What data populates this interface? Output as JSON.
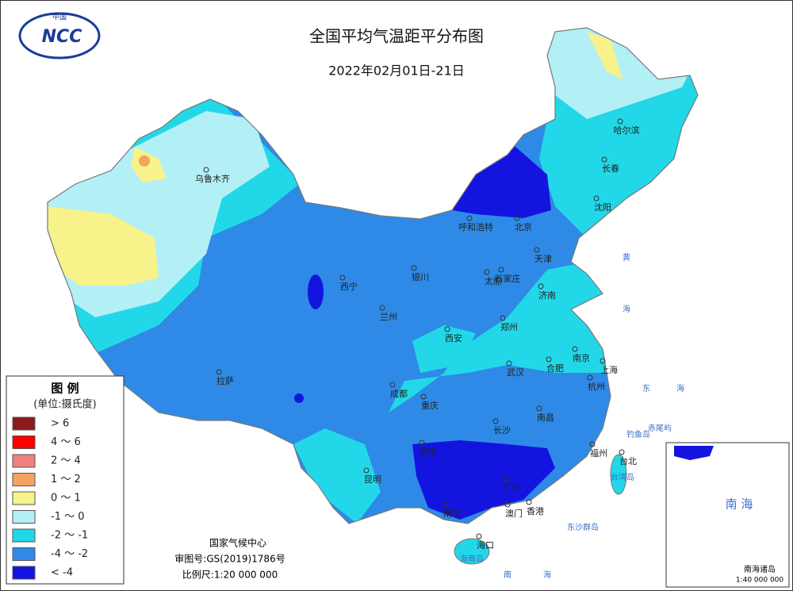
{
  "header": {
    "logo_top": "中国",
    "logo": "NCC",
    "title": "全国平均气温距平分布图",
    "date": "2022年02月01日-21日"
  },
  "legend": {
    "title": "图 例",
    "unit": "(单位:摄氏度)",
    "items": [
      "> 6",
      "4 ～ 6",
      "2 ～ 4",
      "1 ～ 2",
      "0 ～ 1",
      "-1 ～ 0",
      "-2 ～ -1",
      "-4 ～ -2",
      "< -4"
    ]
  },
  "cities": [
    "乌鲁木齐",
    "哈尔滨",
    "长春",
    "沈阳",
    "呼和浩特",
    "北京",
    "天津",
    "石家庄",
    "太原",
    "银川",
    "西宁",
    "兰州",
    "济南",
    "郑州",
    "西安",
    "南京",
    "合肥",
    "上海",
    "武汉",
    "杭州",
    "成都",
    "重庆",
    "拉萨",
    "长沙",
    "南昌",
    "贵阳",
    "福州",
    "台北",
    "昆明",
    "广州",
    "南宁",
    "澳门",
    "香港",
    "海口"
  ],
  "places": [
    "黄",
    "海",
    "东",
    "海",
    "钓鱼岛",
    "赤尾屿",
    "台湾岛",
    "东沙群岛",
    "南",
    "海",
    "海南岛"
  ],
  "footer": {
    "org": "国家气候中心",
    "approval": "审图号:GS(2019)1786号",
    "scale": "比例尺:1:20 000 000"
  },
  "inset": {
    "sea": "南 海",
    "islands": "南海诸岛",
    "scale": "1:40 000 000"
  }
}
